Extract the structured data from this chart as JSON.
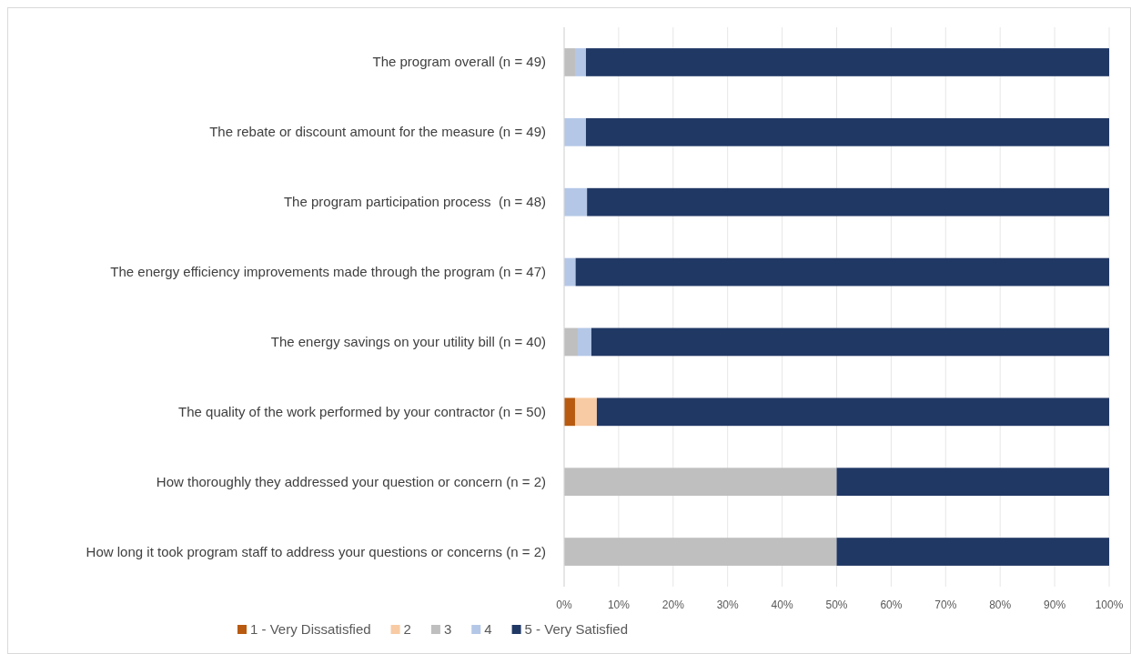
{
  "chart_data": {
    "type": "bar",
    "orientation": "horizontal",
    "stacked": true,
    "categories": [
      "The program overall (n = 49)",
      "The rebate or discount amount for the measure (n = 49)",
      "The program participation process  (n = 48)",
      "The energy efficiency improvements made through the program (n = 47)",
      "The energy savings on your utility bill (n = 40)",
      "The quality of the work performed by your contractor (n = 50)",
      "How thoroughly they addressed your question or concern (n = 2)",
      "How long it took program staff to address your questions or concerns (n = 2)"
    ],
    "series": [
      {
        "name": "1 - Very Dissatisfied",
        "color": "#b85a0f",
        "values": [
          0,
          0,
          0,
          0,
          0,
          2,
          0,
          0
        ]
      },
      {
        "name": "2",
        "color": "#f8cba4",
        "values": [
          0,
          0,
          0,
          0,
          0,
          4,
          0,
          0
        ]
      },
      {
        "name": "3",
        "color": "#bfbfbf",
        "values": [
          2,
          0,
          0,
          0,
          2.5,
          0,
          50,
          50
        ]
      },
      {
        "name": "4",
        "color": "#b4c7e7",
        "values": [
          2,
          4,
          4.2,
          2.1,
          2.5,
          0,
          0,
          0
        ]
      },
      {
        "name": "5 - Very Satisfied",
        "color": "#203864",
        "values": [
          96,
          96,
          95.8,
          97.9,
          95,
          94,
          50,
          50
        ]
      }
    ],
    "xlim": [
      0,
      100
    ],
    "xticks": [
      {
        "value": 0,
        "label": "0%"
      },
      {
        "value": 10,
        "label": "10%"
      },
      {
        "value": 20,
        "label": "20%"
      },
      {
        "value": 30,
        "label": "30%"
      },
      {
        "value": 40,
        "label": "40%"
      },
      {
        "value": 50,
        "label": "50%"
      },
      {
        "value": 60,
        "label": "60%"
      },
      {
        "value": 70,
        "label": "70%"
      },
      {
        "value": 80,
        "label": "80%"
      },
      {
        "value": 90,
        "label": "90%"
      },
      {
        "value": 100,
        "label": "100%"
      }
    ],
    "grid": "x",
    "legend": "bottom"
  }
}
